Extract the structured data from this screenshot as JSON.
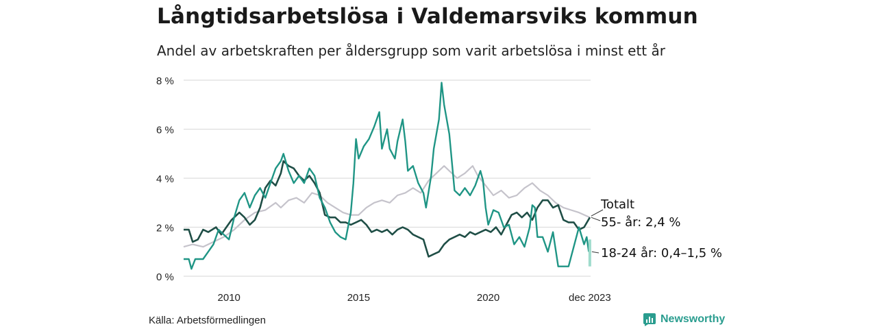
{
  "title": "Långtidsarbetslösa i Valdemarsviks kommun",
  "subtitle": "Andel av arbetskraften per åldersgrupp som varit arbetslösa i minst ett år",
  "source": "Källa: Arbetsförmedlingen",
  "brand": "Newsworthy",
  "colors": {
    "total": "#c5c3cb",
    "age55": "#1f4e46",
    "age18_24": "#1f9585",
    "age18_24_range": "#9fdccc",
    "grid": "#dddddd",
    "brand": "#2a9d8f"
  },
  "chart_data": {
    "type": "line",
    "ylim": [
      0,
      8
    ],
    "xlim": [
      2008.25,
      2023.95
    ],
    "y_ticks": [
      0,
      2,
      4,
      6,
      8
    ],
    "y_tick_labels": [
      "0 %",
      "2 %",
      "4 %",
      "6 %",
      "8 %"
    ],
    "x_ticks": [
      2010,
      2015,
      2020,
      2023.92
    ],
    "x_tick_labels": [
      "2010",
      "2015",
      "2020",
      "dec 2023"
    ],
    "series": [
      {
        "name": "Totalt",
        "label": "Totalt",
        "points": [
          [
            2008.25,
            1.2
          ],
          [
            2008.6,
            1.3
          ],
          [
            2009.0,
            1.2
          ],
          [
            2009.4,
            1.4
          ],
          [
            2009.8,
            1.6
          ],
          [
            2010.2,
            1.9
          ],
          [
            2010.6,
            2.3
          ],
          [
            2011.0,
            2.6
          ],
          [
            2011.4,
            2.7
          ],
          [
            2011.8,
            3.0
          ],
          [
            2012.0,
            2.8
          ],
          [
            2012.3,
            3.1
          ],
          [
            2012.6,
            3.2
          ],
          [
            2012.9,
            3.0
          ],
          [
            2013.2,
            3.4
          ],
          [
            2013.5,
            3.3
          ],
          [
            2013.8,
            3.0
          ],
          [
            2014.1,
            2.8
          ],
          [
            2014.4,
            2.6
          ],
          [
            2014.7,
            2.5
          ],
          [
            2015.0,
            2.5
          ],
          [
            2015.3,
            2.8
          ],
          [
            2015.6,
            3.0
          ],
          [
            2015.9,
            3.1
          ],
          [
            2016.2,
            3.0
          ],
          [
            2016.5,
            3.3
          ],
          [
            2016.8,
            3.4
          ],
          [
            2017.1,
            3.6
          ],
          [
            2017.4,
            3.4
          ],
          [
            2017.7,
            3.9
          ],
          [
            2018.0,
            4.2
          ],
          [
            2018.3,
            4.5
          ],
          [
            2018.5,
            4.3
          ],
          [
            2018.8,
            4.0
          ],
          [
            2019.1,
            4.2
          ],
          [
            2019.4,
            4.5
          ],
          [
            2019.6,
            4.1
          ],
          [
            2019.9,
            3.7
          ],
          [
            2020.2,
            3.3
          ],
          [
            2020.5,
            3.5
          ],
          [
            2020.8,
            3.2
          ],
          [
            2021.1,
            3.3
          ],
          [
            2021.4,
            3.6
          ],
          [
            2021.7,
            3.8
          ],
          [
            2022.0,
            3.5
          ],
          [
            2022.3,
            3.3
          ],
          [
            2022.6,
            3.0
          ],
          [
            2022.9,
            2.8
          ],
          [
            2023.2,
            2.7
          ],
          [
            2023.5,
            2.6
          ],
          [
            2023.92,
            2.4
          ]
        ]
      },
      {
        "name": "55- år",
        "label": "55- år: 2,4 %",
        "points": [
          [
            2008.25,
            1.9
          ],
          [
            2008.45,
            1.9
          ],
          [
            2008.6,
            1.4
          ],
          [
            2008.8,
            1.5
          ],
          [
            2009.0,
            1.9
          ],
          [
            2009.2,
            1.8
          ],
          [
            2009.5,
            2.0
          ],
          [
            2009.7,
            1.7
          ],
          [
            2009.9,
            2.0
          ],
          [
            2010.1,
            2.3
          ],
          [
            2010.4,
            2.6
          ],
          [
            2010.6,
            2.4
          ],
          [
            2010.8,
            2.1
          ],
          [
            2011.0,
            2.3
          ],
          [
            2011.2,
            2.8
          ],
          [
            2011.4,
            3.6
          ],
          [
            2011.6,
            3.9
          ],
          [
            2011.8,
            3.7
          ],
          [
            2012.0,
            4.2
          ],
          [
            2012.1,
            4.7
          ],
          [
            2012.3,
            4.5
          ],
          [
            2012.5,
            4.4
          ],
          [
            2012.7,
            4.1
          ],
          [
            2012.9,
            3.9
          ],
          [
            2013.1,
            4.1
          ],
          [
            2013.3,
            3.8
          ],
          [
            2013.5,
            3.4
          ],
          [
            2013.7,
            2.5
          ],
          [
            2013.9,
            2.4
          ],
          [
            2014.1,
            2.4
          ],
          [
            2014.3,
            2.2
          ],
          [
            2014.5,
            2.2
          ],
          [
            2014.7,
            2.1
          ],
          [
            2014.9,
            2.2
          ],
          [
            2015.1,
            2.3
          ],
          [
            2015.3,
            2.1
          ],
          [
            2015.5,
            1.8
          ],
          [
            2015.7,
            1.9
          ],
          [
            2015.9,
            1.8
          ],
          [
            2016.1,
            1.9
          ],
          [
            2016.3,
            1.7
          ],
          [
            2016.5,
            1.9
          ],
          [
            2016.7,
            2.0
          ],
          [
            2016.9,
            1.9
          ],
          [
            2017.1,
            1.7
          ],
          [
            2017.3,
            1.6
          ],
          [
            2017.5,
            1.5
          ],
          [
            2017.7,
            0.8
          ],
          [
            2017.9,
            0.9
          ],
          [
            2018.1,
            1.0
          ],
          [
            2018.3,
            1.3
          ],
          [
            2018.5,
            1.5
          ],
          [
            2018.7,
            1.6
          ],
          [
            2018.9,
            1.7
          ],
          [
            2019.1,
            1.6
          ],
          [
            2019.3,
            1.8
          ],
          [
            2019.5,
            1.7
          ],
          [
            2019.7,
            1.8
          ],
          [
            2019.9,
            1.9
          ],
          [
            2020.1,
            1.8
          ],
          [
            2020.3,
            2.0
          ],
          [
            2020.5,
            1.7
          ],
          [
            2020.7,
            2.1
          ],
          [
            2020.9,
            2.5
          ],
          [
            2021.1,
            2.6
          ],
          [
            2021.3,
            2.4
          ],
          [
            2021.5,
            2.6
          ],
          [
            2021.7,
            2.3
          ],
          [
            2021.9,
            2.8
          ],
          [
            2022.1,
            3.1
          ],
          [
            2022.3,
            3.1
          ],
          [
            2022.5,
            2.8
          ],
          [
            2022.7,
            2.9
          ],
          [
            2022.9,
            2.3
          ],
          [
            2023.1,
            2.2
          ],
          [
            2023.3,
            2.2
          ],
          [
            2023.5,
            1.9
          ],
          [
            2023.7,
            2.0
          ],
          [
            2023.92,
            2.4
          ]
        ]
      },
      {
        "name": "18-24 år",
        "label": "18-24 år: 0,4–1,5 %",
        "points": [
          [
            2008.25,
            0.7
          ],
          [
            2008.45,
            0.7
          ],
          [
            2008.55,
            0.3
          ],
          [
            2008.7,
            0.7
          ],
          [
            2009.0,
            0.7
          ],
          [
            2009.2,
            1.0
          ],
          [
            2009.4,
            1.3
          ],
          [
            2009.6,
            1.9
          ],
          [
            2009.8,
            1.7
          ],
          [
            2010.0,
            1.5
          ],
          [
            2010.2,
            2.4
          ],
          [
            2010.4,
            3.1
          ],
          [
            2010.6,
            3.4
          ],
          [
            2010.8,
            2.8
          ],
          [
            2011.0,
            3.3
          ],
          [
            2011.2,
            3.6
          ],
          [
            2011.4,
            3.2
          ],
          [
            2011.6,
            3.8
          ],
          [
            2011.8,
            4.4
          ],
          [
            2012.0,
            4.7
          ],
          [
            2012.1,
            5.0
          ],
          [
            2012.3,
            4.3
          ],
          [
            2012.5,
            3.8
          ],
          [
            2012.7,
            4.1
          ],
          [
            2012.9,
            3.8
          ],
          [
            2013.1,
            4.4
          ],
          [
            2013.3,
            4.1
          ],
          [
            2013.5,
            3.2
          ],
          [
            2013.7,
            2.8
          ],
          [
            2013.9,
            2.2
          ],
          [
            2014.1,
            1.8
          ],
          [
            2014.3,
            1.6
          ],
          [
            2014.5,
            1.5
          ],
          [
            2014.7,
            2.6
          ],
          [
            2014.8,
            3.8
          ],
          [
            2014.9,
            5.6
          ],
          [
            2015.0,
            4.8
          ],
          [
            2015.2,
            5.3
          ],
          [
            2015.4,
            5.6
          ],
          [
            2015.6,
            6.1
          ],
          [
            2015.8,
            6.7
          ],
          [
            2015.9,
            5.2
          ],
          [
            2016.1,
            6.0
          ],
          [
            2016.2,
            5.2
          ],
          [
            2016.4,
            4.8
          ],
          [
            2016.5,
            5.5
          ],
          [
            2016.7,
            6.4
          ],
          [
            2016.8,
            5.5
          ],
          [
            2016.9,
            4.3
          ],
          [
            2017.1,
            4.5
          ],
          [
            2017.3,
            3.8
          ],
          [
            2017.5,
            3.4
          ],
          [
            2017.6,
            2.8
          ],
          [
            2017.8,
            4.1
          ],
          [
            2017.9,
            5.2
          ],
          [
            2018.0,
            5.8
          ],
          [
            2018.1,
            6.4
          ],
          [
            2018.2,
            7.9
          ],
          [
            2018.3,
            7.0
          ],
          [
            2018.5,
            5.8
          ],
          [
            2018.7,
            3.5
          ],
          [
            2018.9,
            3.3
          ],
          [
            2019.1,
            3.6
          ],
          [
            2019.3,
            3.3
          ],
          [
            2019.5,
            3.7
          ],
          [
            2019.7,
            4.3
          ],
          [
            2019.8,
            3.9
          ],
          [
            2019.9,
            2.8
          ],
          [
            2020.0,
            2.1
          ],
          [
            2020.2,
            2.7
          ],
          [
            2020.4,
            2.6
          ],
          [
            2020.6,
            2.0
          ],
          [
            2020.8,
            2.1
          ],
          [
            2021.0,
            1.3
          ],
          [
            2021.2,
            1.6
          ],
          [
            2021.4,
            1.2
          ],
          [
            2021.6,
            2.0
          ],
          [
            2021.7,
            2.9
          ],
          [
            2021.8,
            2.8
          ],
          [
            2021.9,
            1.6
          ],
          [
            2022.1,
            1.6
          ],
          [
            2022.3,
            1.0
          ],
          [
            2022.5,
            1.8
          ],
          [
            2022.7,
            0.4
          ],
          [
            2022.9,
            0.4
          ],
          [
            2023.1,
            0.4
          ],
          [
            2023.3,
            1.2
          ],
          [
            2023.5,
            2.0
          ],
          [
            2023.7,
            1.3
          ],
          [
            2023.8,
            1.6
          ],
          [
            2023.88,
            1.0
          ]
        ]
      }
    ],
    "range_band": {
      "series": "18-24 år",
      "x": 2023.92,
      "low": 0.4,
      "high": 1.5
    }
  }
}
